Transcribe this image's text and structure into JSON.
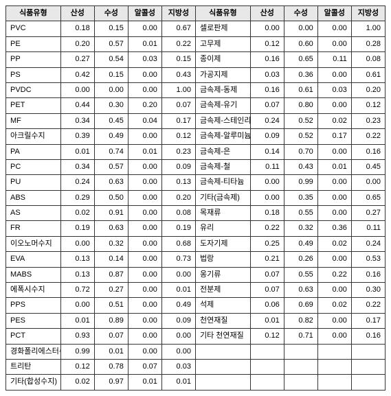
{
  "headers": {
    "type": "식품유형",
    "col1": "산성",
    "col2": "수성",
    "col3": "알콜성",
    "col4": "지방성"
  },
  "rows": [
    {
      "l1": "PVC",
      "a1": "0.18",
      "b1": "0.15",
      "c1": "0.00",
      "d1": "0.67",
      "l2": "셀로판제",
      "a2": "0.00",
      "b2": "0.00",
      "c2": "0.00",
      "d2": "1.00"
    },
    {
      "l1": "PE",
      "a1": "0.20",
      "b1": "0.57",
      "c1": "0.01",
      "d1": "0.22",
      "l2": "고무제",
      "a2": "0.12",
      "b2": "0.60",
      "c2": "0.00",
      "d2": "0.28"
    },
    {
      "l1": "PP",
      "a1": "0.27",
      "b1": "0.54",
      "c1": "0.03",
      "d1": "0.15",
      "l2": "종이제",
      "a2": "0.16",
      "b2": "0.65",
      "c2": "0.11",
      "d2": "0.08"
    },
    {
      "l1": "PS",
      "a1": "0.42",
      "b1": "0.15",
      "c1": "0.00",
      "d1": "0.43",
      "l2": "가공지제",
      "a2": "0.03",
      "b2": "0.36",
      "c2": "0.00",
      "d2": "0.61"
    },
    {
      "l1": "PVDC",
      "a1": "0.00",
      "b1": "0.00",
      "c1": "0.00",
      "d1": "1.00",
      "l2": "금속제-동제",
      "a2": "0.16",
      "b2": "0.61",
      "c2": "0.03",
      "d2": "0.20"
    },
    {
      "l1": "PET",
      "a1": "0.44",
      "b1": "0.30",
      "c1": "0.20",
      "d1": "0.07",
      "l2": "금속제-유기",
      "a2": "0.07",
      "b2": "0.80",
      "c2": "0.00",
      "d2": "0.12"
    },
    {
      "l1": "MF",
      "a1": "0.34",
      "b1": "0.45",
      "c1": "0.04",
      "d1": "0.17",
      "l2": "금속제-스테인리스",
      "a2": "0.24",
      "b2": "0.52",
      "c2": "0.02",
      "d2": "0.23"
    },
    {
      "l1": "아크릴수지",
      "a1": "0.39",
      "b1": "0.49",
      "c1": "0.00",
      "d1": "0.12",
      "l2": "금속제-알루미늄",
      "a2": "0.09",
      "b2": "0.52",
      "c2": "0.17",
      "d2": "0.22"
    },
    {
      "l1": "PA",
      "a1": "0.01",
      "b1": "0.74",
      "c1": "0.01",
      "d1": "0.23",
      "l2": "금속제-은",
      "a2": "0.14",
      "b2": "0.70",
      "c2": "0.00",
      "d2": "0.16"
    },
    {
      "l1": "PC",
      "a1": "0.34",
      "b1": "0.57",
      "c1": "0.00",
      "d1": "0.09",
      "l2": "금속제-철",
      "a2": "0.11",
      "b2": "0.43",
      "c2": "0.01",
      "d2": "0.45"
    },
    {
      "l1": "PU",
      "a1": "0.24",
      "b1": "0.63",
      "c1": "0.00",
      "d1": "0.13",
      "l2": "금속제-티타늄",
      "a2": "0.00",
      "b2": "0.99",
      "c2": "0.00",
      "d2": "0.00"
    },
    {
      "l1": "ABS",
      "a1": "0.29",
      "b1": "0.50",
      "c1": "0.00",
      "d1": "0.20",
      "l2": "기타(금속제)",
      "a2": "0.00",
      "b2": "0.35",
      "c2": "0.00",
      "d2": "0.65"
    },
    {
      "l1": "AS",
      "a1": "0.02",
      "b1": "0.91",
      "c1": "0.00",
      "d1": "0.08",
      "l2": "목재류",
      "a2": "0.18",
      "b2": "0.55",
      "c2": "0.00",
      "d2": "0.27"
    },
    {
      "l1": "FR",
      "a1": "0.19",
      "b1": "0.63",
      "c1": "0.00",
      "d1": "0.19",
      "l2": "유리",
      "a2": "0.22",
      "b2": "0.32",
      "c2": "0.36",
      "d2": "0.11"
    },
    {
      "l1": "이오노머수지",
      "a1": "0.00",
      "b1": "0.32",
      "c1": "0.00",
      "d1": "0.68",
      "l2": "도자기제",
      "a2": "0.25",
      "b2": "0.49",
      "c2": "0.02",
      "d2": "0.24"
    },
    {
      "l1": "EVA",
      "a1": "0.13",
      "b1": "0.14",
      "c1": "0.00",
      "d1": "0.73",
      "l2": "법랑",
      "a2": "0.21",
      "b2": "0.26",
      "c2": "0.00",
      "d2": "0.53"
    },
    {
      "l1": "MABS",
      "a1": "0.13",
      "b1": "0.87",
      "c1": "0.00",
      "d1": "0.00",
      "l2": "옹기류",
      "a2": "0.07",
      "b2": "0.55",
      "c2": "0.22",
      "d2": "0.16"
    },
    {
      "l1": "에폭시수지",
      "a1": "0.72",
      "b1": "0.27",
      "c1": "0.00",
      "d1": "0.01",
      "l2": "전분제",
      "a2": "0.07",
      "b2": "0.63",
      "c2": "0.00",
      "d2": "0.30"
    },
    {
      "l1": "PPS",
      "a1": "0.00",
      "b1": "0.51",
      "c1": "0.00",
      "d1": "0.49",
      "l2": "석제",
      "a2": "0.06",
      "b2": "0.69",
      "c2": "0.02",
      "d2": "0.22"
    },
    {
      "l1": "PES",
      "a1": "0.01",
      "b1": "0.89",
      "c1": "0.00",
      "d1": "0.09",
      "l2": "천연재질",
      "a2": "0.01",
      "b2": "0.82",
      "c2": "0.00",
      "d2": "0.17"
    },
    {
      "l1": "PCT",
      "a1": "0.93",
      "b1": "0.07",
      "c1": "0.00",
      "d1": "0.00",
      "l2": "기타 천연재질",
      "a2": "0.12",
      "b2": "0.71",
      "c2": "0.00",
      "d2": "0.16"
    },
    {
      "l1": "경화폴리에스터수지",
      "a1": "0.99",
      "b1": "0.01",
      "c1": "0.00",
      "d1": "0.00",
      "l2": "",
      "a2": "",
      "b2": "",
      "c2": "",
      "d2": ""
    },
    {
      "l1": "트리탄",
      "a1": "0.12",
      "b1": "0.78",
      "c1": "0.07",
      "d1": "0.03",
      "l2": "",
      "a2": "",
      "b2": "",
      "c2": "",
      "d2": ""
    },
    {
      "l1": "기타(합성수지)",
      "a1": "0.02",
      "b1": "0.97",
      "c1": "0.01",
      "d1": "0.01",
      "l2": "",
      "a2": "",
      "b2": "",
      "c2": "",
      "d2": ""
    }
  ]
}
